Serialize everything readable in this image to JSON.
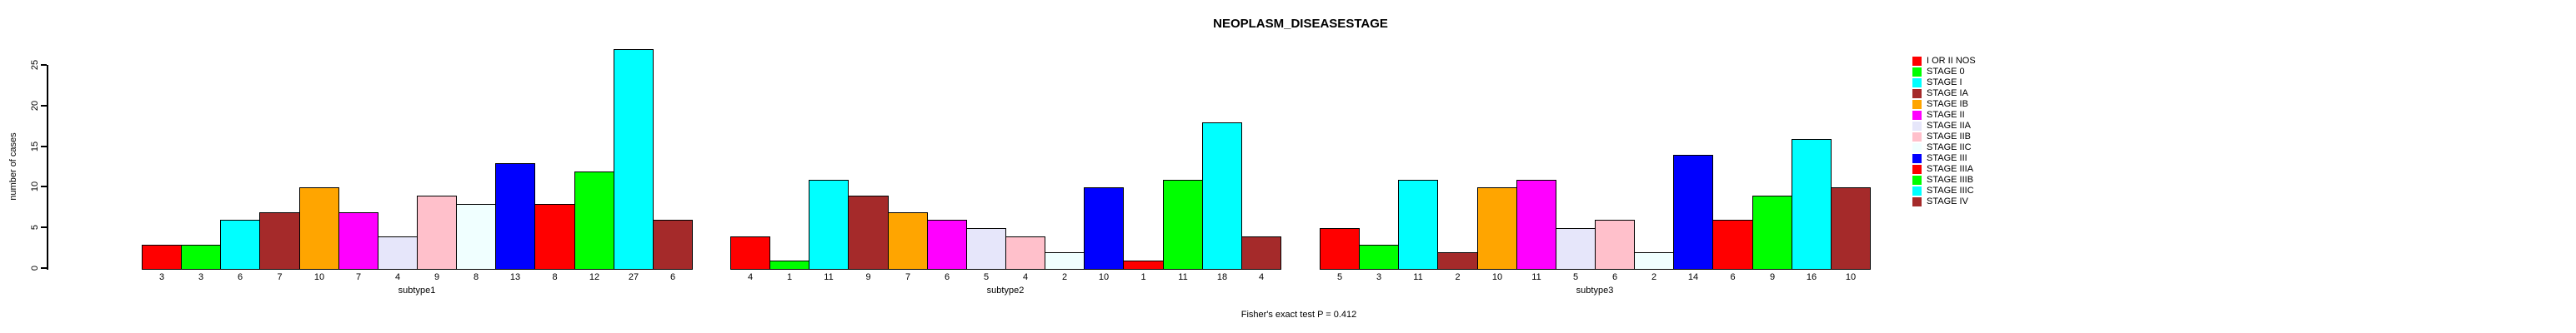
{
  "chart_data": {
    "type": "bar",
    "title": "NEOPLASM_DISEASESTAGE",
    "ylabel": "number of cases",
    "y_ticks": [
      0,
      5,
      10,
      15,
      20,
      25
    ],
    "ylim": [
      0,
      27
    ],
    "grid": false,
    "legend_position": "right",
    "bar_value_labels_shown": true,
    "series_labels": [
      "I OR II NOS",
      "STAGE 0",
      "STAGE I",
      "STAGE IA",
      "STAGE IB",
      "STAGE II",
      "STAGE IIA",
      "STAGE IIB",
      "STAGE IIC",
      "STAGE III",
      "STAGE IIIA",
      "STAGE IIIB",
      "STAGE IIIC",
      "STAGE IV"
    ],
    "colors": [
      "#FF0000",
      "#00FF00",
      "#00FFFF",
      "#A52A2A",
      "#FFA500",
      "#FF00FF",
      "#E6E6FA",
      "#FFC0CB",
      "#F0FFFF",
      "#0000FF",
      "#FF0000",
      "#00FF00",
      "#00FFFF",
      "#A52A2A"
    ],
    "groups": [
      {
        "label": "subtype1",
        "values": [
          3,
          3,
          6,
          7,
          10,
          7,
          4,
          9,
          8,
          13,
          8,
          12,
          27,
          6
        ]
      },
      {
        "label": "subtype2",
        "values": [
          4,
          1,
          11,
          9,
          7,
          6,
          5,
          4,
          2,
          10,
          1,
          11,
          18,
          4
        ]
      },
      {
        "label": "subtype3",
        "values": [
          5,
          3,
          11,
          2,
          10,
          11,
          5,
          6,
          2,
          14,
          6,
          9,
          16,
          10
        ]
      }
    ],
    "annotation": "Fisher's exact test P = 0.412"
  }
}
